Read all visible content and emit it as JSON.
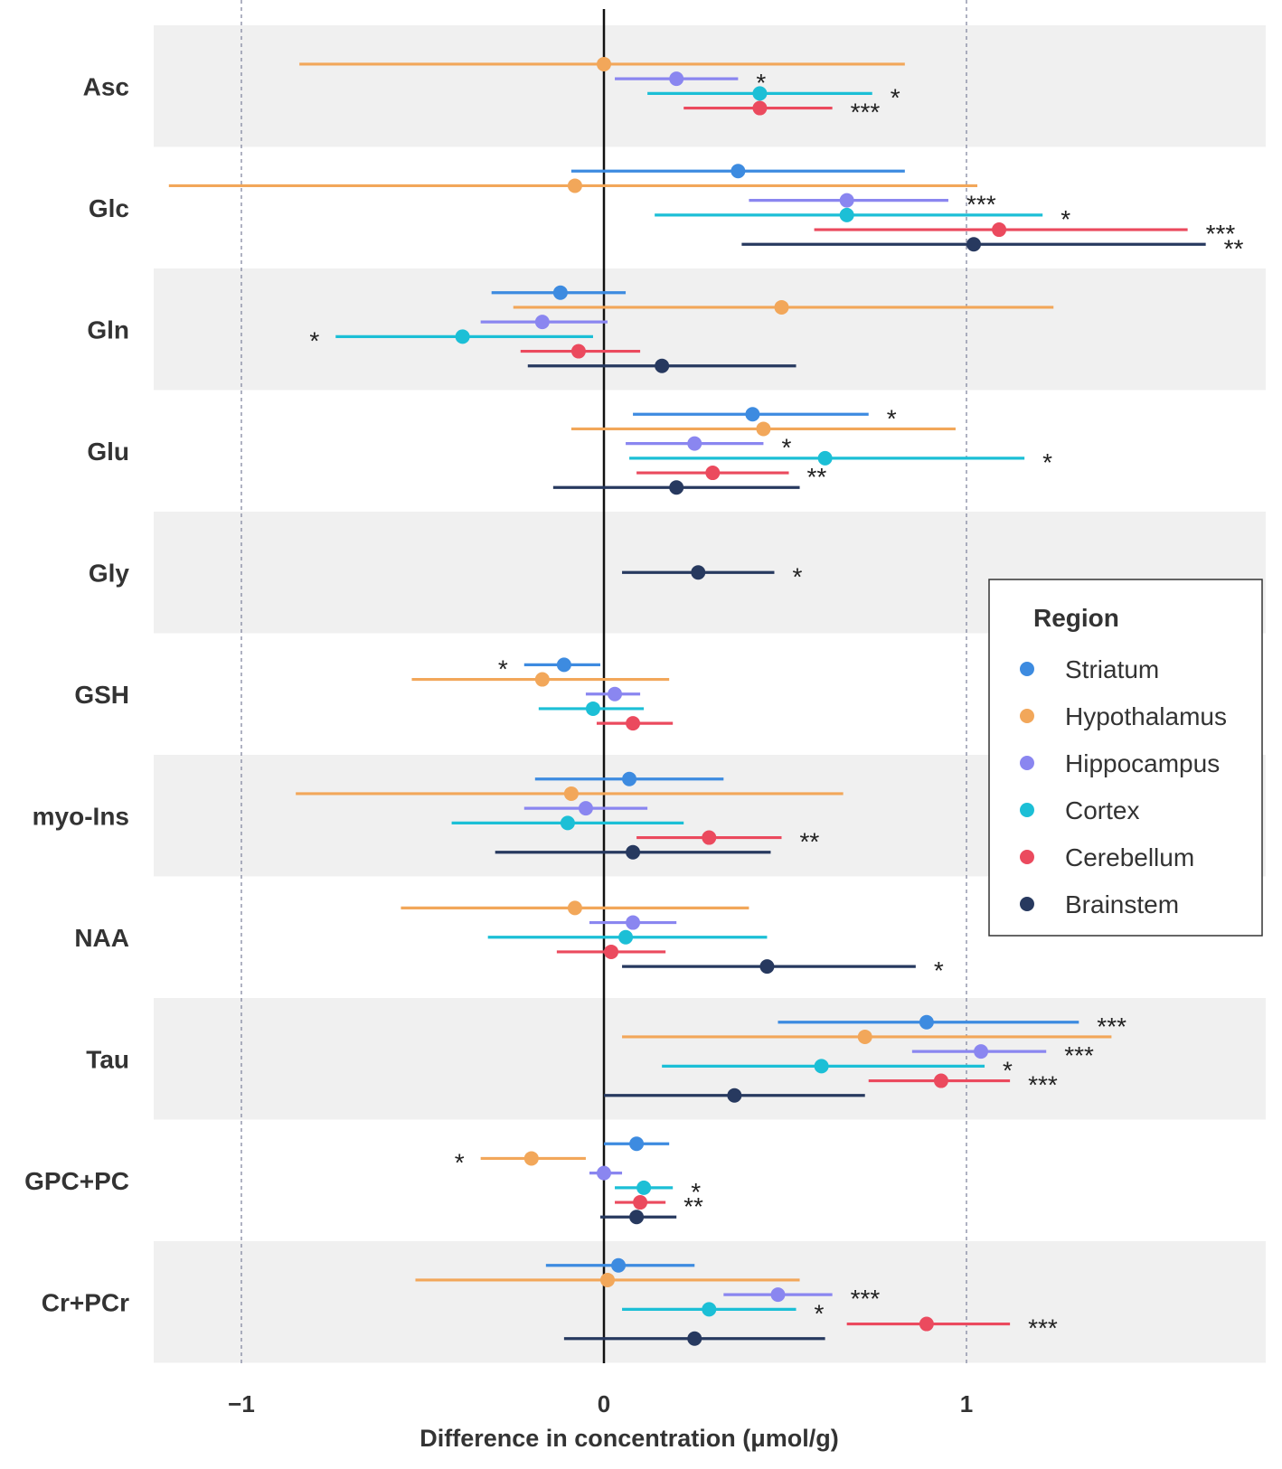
{
  "chart_data": {
    "type": "forest",
    "xlabel": "Difference in concentration (μmol/g)",
    "xlim": [
      -1.25,
      1.82
    ],
    "xticks": [
      -1,
      0,
      1
    ],
    "xtick_labels": [
      "−1",
      "0",
      "1"
    ],
    "legend": {
      "title": "Region",
      "placement": "right",
      "entries": [
        {
          "name": "Striatum",
          "color": "#3d8be0"
        },
        {
          "name": "Hypothalamus",
          "color": "#f2a75a"
        },
        {
          "name": "Hippocampus",
          "color": "#8a86f0"
        },
        {
          "name": "Cortex",
          "color": "#1cbfd6"
        },
        {
          "name": "Cerebellum",
          "color": "#eb4a5e"
        },
        {
          "name": "Brainstem",
          "color": "#27395f"
        }
      ]
    },
    "categories": [
      {
        "label": "Asc",
        "rows": [
          {
            "region": "Hypothalamus",
            "est": 0.0,
            "lo": -0.84,
            "hi": 0.83,
            "sig": ""
          },
          {
            "region": "Hippocampus",
            "est": 0.2,
            "lo": 0.03,
            "hi": 0.37,
            "sig": "*"
          },
          {
            "region": "Cortex",
            "est": 0.43,
            "lo": 0.12,
            "hi": 0.74,
            "sig": "*"
          },
          {
            "region": "Cerebellum",
            "est": 0.43,
            "lo": 0.22,
            "hi": 0.63,
            "sig": "***"
          }
        ]
      },
      {
        "label": "Glc",
        "rows": [
          {
            "region": "Striatum",
            "est": 0.37,
            "lo": -0.09,
            "hi": 0.83,
            "sig": ""
          },
          {
            "region": "Hypothalamus",
            "est": -0.08,
            "lo": -1.2,
            "hi": 1.03,
            "sig": ""
          },
          {
            "region": "Hippocampus",
            "est": 0.67,
            "lo": 0.4,
            "hi": 0.95,
            "sig": "***"
          },
          {
            "region": "Cortex",
            "est": 0.67,
            "lo": 0.14,
            "hi": 1.21,
            "sig": "*"
          },
          {
            "region": "Cerebellum",
            "est": 1.09,
            "lo": 0.58,
            "hi": 1.61,
            "sig": "***"
          },
          {
            "region": "Brainstem",
            "est": 1.02,
            "lo": 0.38,
            "hi": 1.66,
            "sig": "**"
          }
        ]
      },
      {
        "label": "Gln",
        "rows": [
          {
            "region": "Striatum",
            "est": -0.12,
            "lo": -0.31,
            "hi": 0.06,
            "sig": ""
          },
          {
            "region": "Hypothalamus",
            "est": 0.49,
            "lo": -0.25,
            "hi": 1.24,
            "sig": ""
          },
          {
            "region": "Hippocampus",
            "est": -0.17,
            "lo": -0.34,
            "hi": 0.01,
            "sig": ""
          },
          {
            "region": "Cortex",
            "est": -0.39,
            "lo": -0.74,
            "hi": -0.03,
            "sig": "*"
          },
          {
            "region": "Cerebellum",
            "est": -0.07,
            "lo": -0.23,
            "hi": 0.1,
            "sig": ""
          },
          {
            "region": "Brainstem",
            "est": 0.16,
            "lo": -0.21,
            "hi": 0.53,
            "sig": ""
          }
        ]
      },
      {
        "label": "Glu",
        "rows": [
          {
            "region": "Striatum",
            "est": 0.41,
            "lo": 0.08,
            "hi": 0.73,
            "sig": "*"
          },
          {
            "region": "Hypothalamus",
            "est": 0.44,
            "lo": -0.09,
            "hi": 0.97,
            "sig": ""
          },
          {
            "region": "Hippocampus",
            "est": 0.25,
            "lo": 0.06,
            "hi": 0.44,
            "sig": "*"
          },
          {
            "region": "Cortex",
            "est": 0.61,
            "lo": 0.07,
            "hi": 1.16,
            "sig": "*"
          },
          {
            "region": "Cerebellum",
            "est": 0.3,
            "lo": 0.09,
            "hi": 0.51,
            "sig": "**"
          },
          {
            "region": "Brainstem",
            "est": 0.2,
            "lo": -0.14,
            "hi": 0.54,
            "sig": ""
          }
        ]
      },
      {
        "label": "Gly",
        "rows": [
          {
            "region": "Brainstem",
            "est": 0.26,
            "lo": 0.05,
            "hi": 0.47,
            "sig": "*"
          }
        ]
      },
      {
        "label": "GSH",
        "rows": [
          {
            "region": "Striatum",
            "est": -0.11,
            "lo": -0.22,
            "hi": -0.01,
            "sig": "*"
          },
          {
            "region": "Hypothalamus",
            "est": -0.17,
            "lo": -0.53,
            "hi": 0.18,
            "sig": ""
          },
          {
            "region": "Hippocampus",
            "est": 0.03,
            "lo": -0.05,
            "hi": 0.1,
            "sig": ""
          },
          {
            "region": "Cortex",
            "est": -0.03,
            "lo": -0.18,
            "hi": 0.11,
            "sig": ""
          },
          {
            "region": "Cerebellum",
            "est": 0.08,
            "lo": -0.02,
            "hi": 0.19,
            "sig": ""
          }
        ]
      },
      {
        "label": "myo-Ins",
        "rows": [
          {
            "region": "Striatum",
            "est": 0.07,
            "lo": -0.19,
            "hi": 0.33,
            "sig": ""
          },
          {
            "region": "Hypothalamus",
            "est": -0.09,
            "lo": -0.85,
            "hi": 0.66,
            "sig": ""
          },
          {
            "region": "Hippocampus",
            "est": -0.05,
            "lo": -0.22,
            "hi": 0.12,
            "sig": ""
          },
          {
            "region": "Cortex",
            "est": -0.1,
            "lo": -0.42,
            "hi": 0.22,
            "sig": ""
          },
          {
            "region": "Cerebellum",
            "est": 0.29,
            "lo": 0.09,
            "hi": 0.49,
            "sig": "**"
          },
          {
            "region": "Brainstem",
            "est": 0.08,
            "lo": -0.3,
            "hi": 0.46,
            "sig": ""
          }
        ]
      },
      {
        "label": "NAA",
        "rows": [
          {
            "region": "Hypothalamus",
            "est": -0.08,
            "lo": -0.56,
            "hi": 0.4,
            "sig": ""
          },
          {
            "region": "Hippocampus",
            "est": 0.08,
            "lo": -0.04,
            "hi": 0.2,
            "sig": ""
          },
          {
            "region": "Cortex",
            "est": 0.06,
            "lo": -0.32,
            "hi": 0.45,
            "sig": ""
          },
          {
            "region": "Cerebellum",
            "est": 0.02,
            "lo": -0.13,
            "hi": 0.17,
            "sig": ""
          },
          {
            "region": "Brainstem",
            "est": 0.45,
            "lo": 0.05,
            "hi": 0.86,
            "sig": "*"
          }
        ]
      },
      {
        "label": "Tau",
        "rows": [
          {
            "region": "Striatum",
            "est": 0.89,
            "lo": 0.48,
            "hi": 1.31,
            "sig": "***"
          },
          {
            "region": "Hypothalamus",
            "est": 0.72,
            "lo": 0.05,
            "hi": 1.4,
            "sig": ""
          },
          {
            "region": "Hippocampus",
            "est": 1.04,
            "lo": 0.85,
            "hi": 1.22,
            "sig": "***"
          },
          {
            "region": "Cortex",
            "est": 0.6,
            "lo": 0.16,
            "hi": 1.05,
            "sig": "*"
          },
          {
            "region": "Cerebellum",
            "est": 0.93,
            "lo": 0.73,
            "hi": 1.12,
            "sig": "***"
          },
          {
            "region": "Brainstem",
            "est": 0.36,
            "lo": 0.0,
            "hi": 0.72,
            "sig": ""
          }
        ]
      },
      {
        "label": "GPC+PC",
        "rows": [
          {
            "region": "Striatum",
            "est": 0.09,
            "lo": 0.0,
            "hi": 0.18,
            "sig": ""
          },
          {
            "region": "Hypothalamus",
            "est": -0.2,
            "lo": -0.34,
            "hi": -0.05,
            "sig": "*"
          },
          {
            "region": "Hippocampus",
            "est": 0.0,
            "lo": -0.04,
            "hi": 0.05,
            "sig": ""
          },
          {
            "region": "Cortex",
            "est": 0.11,
            "lo": 0.03,
            "hi": 0.19,
            "sig": "*"
          },
          {
            "region": "Cerebellum",
            "est": 0.1,
            "lo": 0.03,
            "hi": 0.17,
            "sig": "**"
          },
          {
            "region": "Brainstem",
            "est": 0.09,
            "lo": -0.01,
            "hi": 0.2,
            "sig": ""
          }
        ]
      },
      {
        "label": "Cr+PCr",
        "rows": [
          {
            "region": "Striatum",
            "est": 0.04,
            "lo": -0.16,
            "hi": 0.25,
            "sig": ""
          },
          {
            "region": "Hypothalamus",
            "est": 0.01,
            "lo": -0.52,
            "hi": 0.54,
            "sig": ""
          },
          {
            "region": "Hippocampus",
            "est": 0.48,
            "lo": 0.33,
            "hi": 0.63,
            "sig": "***"
          },
          {
            "region": "Cortex",
            "est": 0.29,
            "lo": 0.05,
            "hi": 0.53,
            "sig": "*"
          },
          {
            "region": "Cerebellum",
            "est": 0.89,
            "lo": 0.67,
            "hi": 1.12,
            "sig": "***"
          },
          {
            "region": "Brainstem",
            "est": 0.25,
            "lo": -0.11,
            "hi": 0.61,
            "sig": ""
          }
        ]
      }
    ]
  }
}
